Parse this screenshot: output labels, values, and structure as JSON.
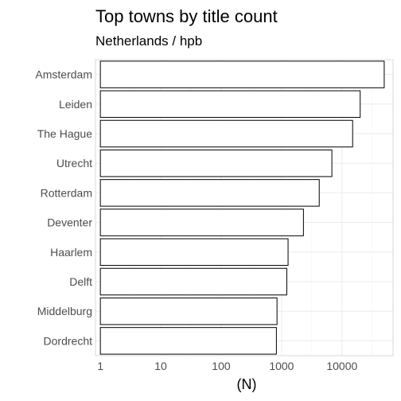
{
  "chart_data": {
    "type": "bar",
    "orientation": "horizontal",
    "title": "Top towns by title count",
    "subtitle": "Netherlands / hpb",
    "xlabel": "(N)",
    "ylabel": "",
    "x_scale": "log10",
    "xlim": [
      0.83,
      70000
    ],
    "x_ticks": [
      1,
      10,
      100,
      1000,
      10000
    ],
    "x_tick_labels": [
      "1",
      "10",
      "100",
      "1000",
      "10000"
    ],
    "categories": [
      "Amsterdam",
      "Leiden",
      "The Hague",
      "Utrecht",
      "Rotterdam",
      "Deventer",
      "Haarlem",
      "Delft",
      "Middelburg",
      "Dordrecht"
    ],
    "values": [
      50000,
      20000,
      15000,
      6800,
      4200,
      2300,
      1280,
      1220,
      840,
      820
    ],
    "grid": true,
    "legend": "none",
    "bar_fill": "#ffffff",
    "bar_stroke": "#000000"
  }
}
